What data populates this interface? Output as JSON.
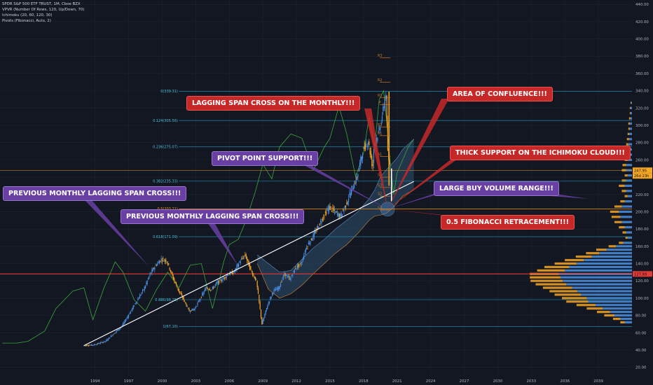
{
  "header": {
    "title": "SPDR S&P 500 ETF TRUST, 1M, Cboe BZX",
    "indicators": [
      "VPVR (Number Of Rows, 120, Up/Down, 70)",
      "Ichimoku (20, 60, 120, 30)",
      "Pivots (Fibonacci, Auto, 2)"
    ]
  },
  "annotations": {
    "lagging_monthly": "LAGGING SPAN CROSS ON THE MONTHLY!!!",
    "confluence": "AREA OF CONFLUENCE!!!",
    "pivot_support": "PIVOT POINT SUPPORT!!!",
    "thick_support": "THICK SUPPORT ON THE ICHIMOKU CLOUD!!!",
    "previous_cross_1": "PREVIOUS MONTHLY LAGGING SPAN CROSS!!!",
    "buy_volume": "LARGE BUY VOLUME RANGE!!!",
    "previous_cross_2": "PREVIOUS MONTHLY LAGGING SPAN CROSS!!!",
    "fib_half": "0.5 FIBONACCI RETRACEMENT!!!"
  },
  "colors": {
    "background": "#131722",
    "grid": "#1f2433",
    "candle_up": "#4a90e2",
    "candle_down": "#f5a623",
    "lagging_span": "#3aa63a",
    "trendline": "#ffffff",
    "fib_line": "#1e88a8",
    "red_line": "#e53935",
    "orange_line": "#e89b2c",
    "cloud": "#2e4f6e",
    "annotation_red": "#c62828",
    "annotation_purple": "#6a3fa3"
  },
  "chart_data": {
    "type": "candlestick",
    "symbol": "SPY",
    "timeframe": "1M",
    "y_axis": {
      "ticks": [
        20,
        40,
        60,
        80,
        100,
        120,
        140,
        160,
        180,
        200,
        220,
        240,
        260,
        280,
        300,
        320,
        340,
        360,
        380,
        400,
        420,
        440
      ],
      "ylim": [
        10,
        445
      ]
    },
    "x_axis": {
      "ticks": [
        "1994",
        "1997",
        "2000",
        "2003",
        "2006",
        "2009",
        "2012",
        "2015",
        "2018",
        "2021",
        "2024",
        "2027",
        "2030",
        "2033",
        "2036",
        "2039"
      ],
      "xlim": [
        1985.5,
        2042
      ]
    },
    "price_series": {
      "x": [
        1993.0,
        1994.0,
        1995.0,
        1996.0,
        1996.5,
        1997.5,
        1998.5,
        1999.0,
        1999.5,
        2000.0,
        2000.5,
        2001.0,
        2001.5,
        2002.0,
        2002.5,
        2003.0,
        2003.5,
        2004.0,
        2004.5,
        2005.0,
        2005.5,
        2006.0,
        2006.5,
        2007.0,
        2007.5,
        2008.0,
        2008.5,
        2009.0,
        2009.5,
        2010.0,
        2010.5,
        2011.0,
        2011.5,
        2012.0,
        2012.5,
        2013.0,
        2013.5,
        2014.0,
        2014.5,
        2015.0,
        2015.5,
        2016.0,
        2016.5,
        2017.0,
        2017.5,
        2018.0,
        2018.5,
        2018.9,
        2019.0,
        2019.5,
        2019.9,
        2020.1,
        2020.2,
        2020.35
      ],
      "y": [
        45,
        46,
        50,
        62,
        68,
        90,
        112,
        128,
        138,
        145,
        143,
        125,
        110,
        98,
        85,
        88,
        100,
        112,
        110,
        118,
        122,
        128,
        130,
        142,
        150,
        132,
        120,
        70,
        92,
        108,
        112,
        128,
        122,
        135,
        140,
        160,
        170,
        182,
        195,
        205,
        200,
        195,
        208,
        225,
        240,
        270,
        282,
        250,
        275,
        295,
        322,
        339,
        280,
        255
      ]
    },
    "lagging_span": {
      "x": [
        1985.7,
        1987.0,
        1988.0,
        1989.5,
        1990.5,
        1992.0,
        1993.0,
        1993.8,
        1994.8,
        1995.8,
        1996.5,
        1997.5,
        1998.5,
        1999.5,
        2000.5,
        2001.5,
        2002.5,
        2003.5,
        2004.5,
        2005.5,
        2006.0,
        2006.8,
        2007.5,
        2008.3,
        2009.0,
        2009.8,
        2010.5,
        2011.5,
        2012.5,
        2013.5,
        2014.5,
        2015.0,
        2015.8,
        2016.5,
        2017.3,
        2018.0,
        2018.5,
        2019.0,
        2019.4,
        2019.8,
        2020.1,
        2020.4,
        2020.7,
        2021.0,
        2021.5,
        2022.0,
        2022.5
      ],
      "y": [
        48,
        48,
        50,
        62,
        88,
        108,
        112,
        75,
        112,
        142,
        130,
        98,
        85,
        110,
        130,
        112,
        138,
        140,
        88,
        142,
        162,
        168,
        190,
        222,
        255,
        238,
        275,
        290,
        285,
        248,
        275,
        285,
        322,
        290,
        240,
        268,
        310,
        275,
        330,
        340,
        300,
        255,
        220,
        245,
        260,
        275,
        284
      ]
    },
    "ichimoku_cloud": {
      "x": [
        2008.5,
        2009.5,
        2010.5,
        2011.5,
        2012.5,
        2013.5,
        2014.5,
        2015.5,
        2016.5,
        2017.5,
        2018.5,
        2019.0,
        2019.5,
        2020.0,
        2020.5,
        2021.0,
        2021.5,
        2022.0,
        2022.5
      ],
      "upper": [
        150,
        140,
        130,
        132,
        145,
        158,
        168,
        180,
        190,
        200,
        215,
        225,
        240,
        248,
        255,
        262,
        272,
        278,
        284
      ],
      "lower": [
        140,
        110,
        100,
        105,
        115,
        128,
        140,
        152,
        162,
        175,
        190,
        195,
        196,
        198,
        203,
        210,
        218,
        222,
        225
      ]
    },
    "trendline": {
      "x": [
        1993.0,
        2022.5
      ],
      "y": [
        45,
        235
      ]
    },
    "fibonacci": [
      {
        "label": "0(339.31)",
        "level": 339.31
      },
      {
        "label": "0.124(305.56)",
        "level": 305.56
      },
      {
        "label": "0.236(275.07)",
        "level": 275.07
      },
      {
        "label": "0.382(235.33)",
        "level": 235.33
      },
      {
        "label": "0.5(203.21)",
        "level": 203.21
      },
      {
        "label": "0.618(171.09)",
        "level": 171.09
      },
      {
        "label": "0.886(98.25)",
        "level": 98.25
      },
      {
        "label": "1(67.10)",
        "level": 67.1
      }
    ],
    "pivots": [
      {
        "label": "R3",
        "level": 378
      },
      {
        "label": "R2",
        "level": 350
      },
      {
        "label": "R1",
        "level": 332
      },
      {
        "label": "P",
        "level": 324
      },
      {
        "label": "R2",
        "level": 298
      },
      {
        "label": "R1",
        "level": 288
      },
      {
        "label": "S1",
        "level": 264
      },
      {
        "label": "S2",
        "level": 240
      },
      {
        "label": "S3",
        "level": 228
      },
      {
        "label": "S2",
        "level": 218
      },
      {
        "label": "S3",
        "level": 202
      }
    ],
    "price_labels": [
      {
        "text": "247.95",
        "level": 247.95,
        "color": "#f5a623"
      },
      {
        "text": "26d 23h",
        "level": 241.5,
        "color": "#f5a623"
      },
      {
        "text": "127.99",
        "level": 127.99,
        "color": "#e53935"
      }
    ],
    "orange_level": 247.95,
    "red_level": 127.99,
    "volume_profile": {
      "levels": [
        72,
        76,
        80,
        84,
        88,
        92,
        96,
        100,
        104,
        108,
        112,
        116,
        120,
        124,
        128,
        132,
        136,
        140,
        144,
        148,
        152,
        156,
        160,
        164,
        170,
        176,
        182,
        188,
        194,
        200,
        206,
        212,
        218,
        224,
        230,
        236,
        242,
        248,
        254,
        260,
        266,
        272,
        278,
        284,
        290,
        296,
        302,
        308,
        314,
        320,
        326
      ],
      "up": [
        10,
        16,
        24,
        30,
        40,
        50,
        60,
        62,
        70,
        75,
        82,
        90,
        95,
        98,
        100,
        92,
        86,
        76,
        66,
        55,
        45,
        35,
        22,
        12,
        6,
        8,
        10,
        14,
        16,
        18,
        14,
        10,
        6,
        8,
        10,
        8,
        6,
        8,
        8,
        6,
        6,
        5,
        5,
        4,
        4,
        3,
        3,
        2,
        2,
        2,
        1
      ],
      "down": [
        6,
        10,
        14,
        18,
        22,
        26,
        30,
        34,
        36,
        38,
        40,
        42,
        44,
        42,
        40,
        38,
        34,
        30,
        26,
        22,
        18,
        14,
        10,
        6,
        3,
        5,
        8,
        10,
        12,
        12,
        10,
        6,
        4,
        6,
        8,
        6,
        4,
        6,
        5,
        4,
        4,
        3,
        3,
        3,
        2,
        2,
        2,
        2,
        1,
        1,
        1
      ]
    }
  }
}
